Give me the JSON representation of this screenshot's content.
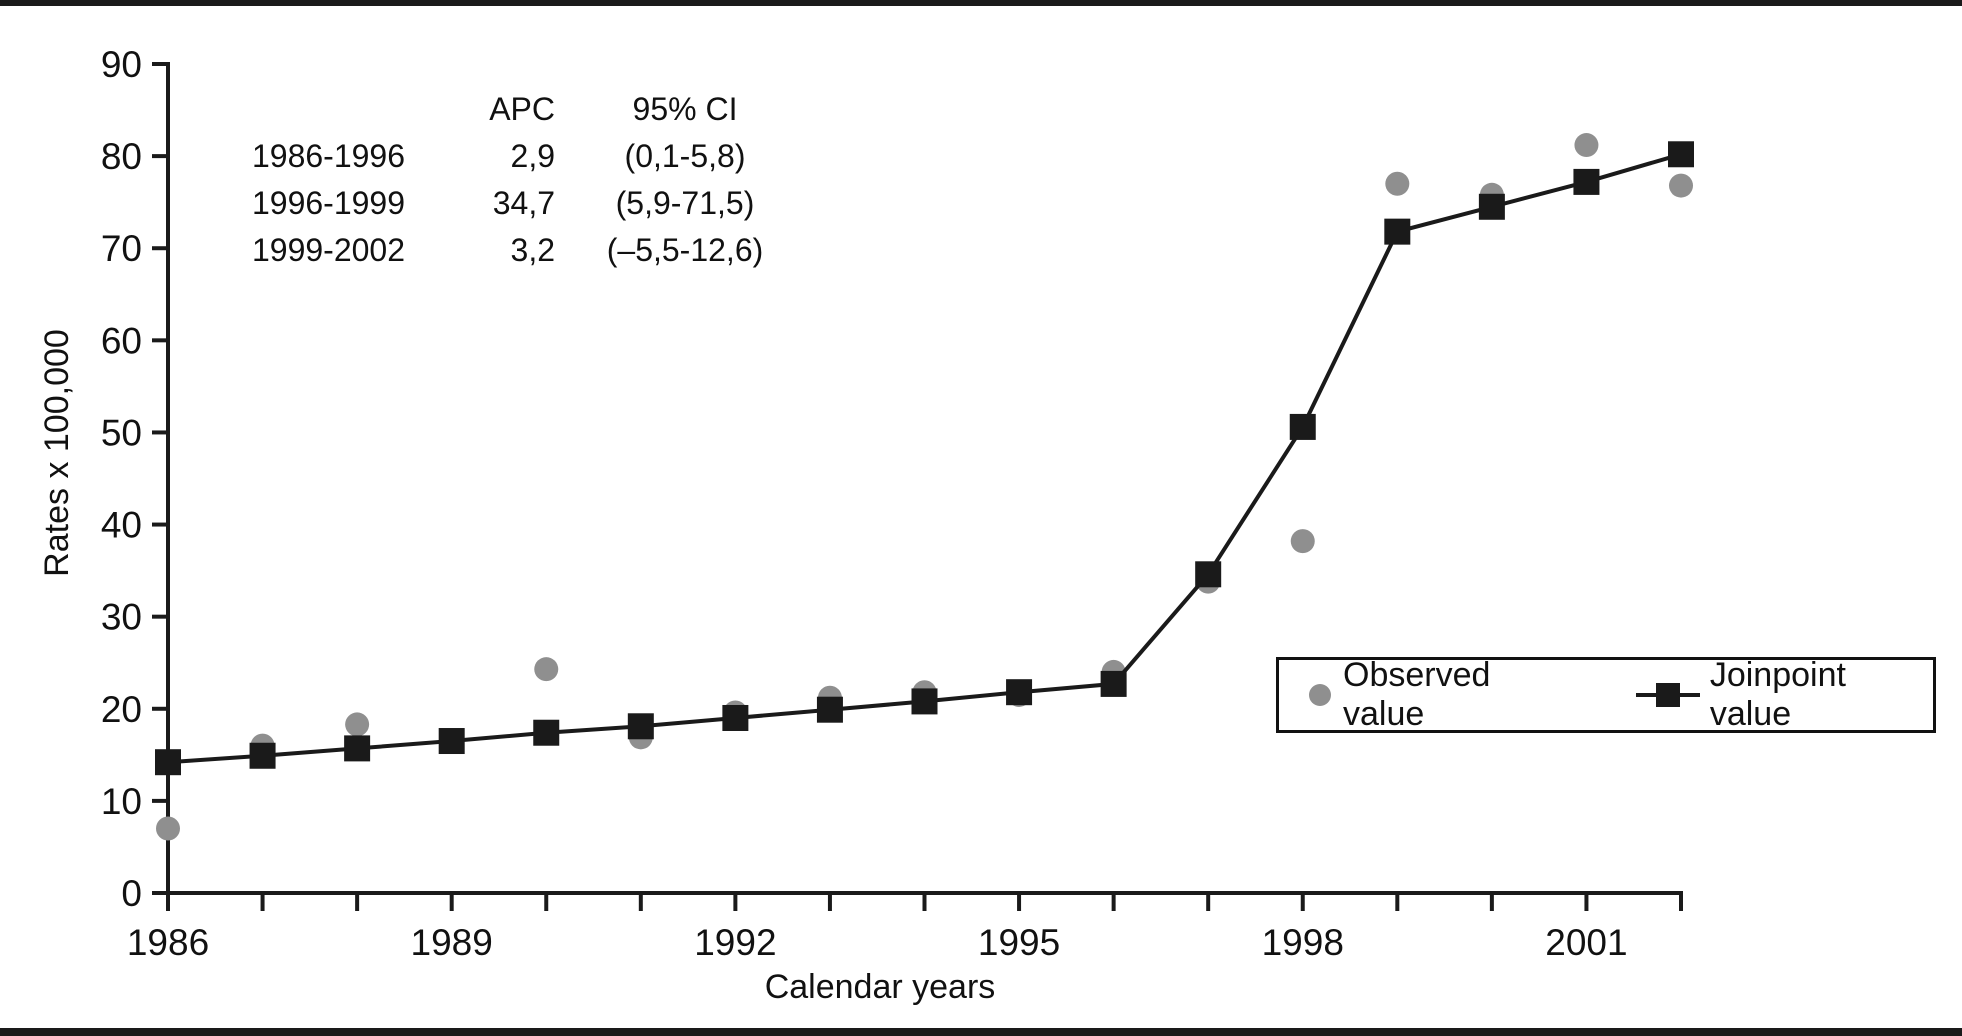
{
  "figure": {
    "background": "#ffffff",
    "frame_color": "#1a1a1a"
  },
  "annotation": {
    "header": {
      "apc": "APC",
      "ci": "95% CI"
    },
    "rows": [
      {
        "period": "1986-1996",
        "apc": "2,9",
        "ci": "(0,1-5,8)"
      },
      {
        "period": "1996-1999",
        "apc": "34,7",
        "ci": "(5,9-71,5)"
      },
      {
        "period": "1999-2002",
        "apc": "3,2",
        "ci": "(–5,5-12,6)"
      }
    ]
  },
  "legend": {
    "observed": "Observed value",
    "joinpoint": "Joinpoint value",
    "position": "lower right"
  },
  "chart_data": {
    "type": "line",
    "title": "",
    "xlabel": "Calendar years",
    "ylabel": "Rates x 100,000",
    "x": [
      1986,
      1987,
      1988,
      1989,
      1990,
      1991,
      1992,
      1993,
      1994,
      1995,
      1996,
      1997,
      1998,
      1999,
      2000,
      2001,
      2002
    ],
    "series": [
      {
        "name": "Observed value",
        "marker": "circle",
        "color": "#8f8f8f",
        "line": false,
        "values": [
          7.0,
          16.0,
          18.3,
          16.5,
          24.3,
          16.9,
          19.6,
          21.2,
          21.8,
          21.5,
          24.0,
          33.8,
          38.2,
          77.0,
          75.8,
          81.2,
          76.8
        ]
      },
      {
        "name": "Joinpoint value",
        "marker": "square",
        "color": "#1a1a1a",
        "line": true,
        "values": [
          14.2,
          14.9,
          15.7,
          16.5,
          17.4,
          18.1,
          19.0,
          19.9,
          20.8,
          21.8,
          22.7,
          34.6,
          50.6,
          71.8,
          74.5,
          77.2,
          80.2
        ]
      }
    ],
    "xlim": [
      1986,
      2002
    ],
    "ylim": [
      0,
      90
    ],
    "y_ticks": [
      0,
      10,
      20,
      30,
      40,
      50,
      60,
      70,
      80,
      90
    ],
    "x_tick_labels": [
      1986,
      1989,
      1992,
      1995,
      1998,
      2001
    ],
    "grid": false,
    "legend_position": "lower right"
  }
}
